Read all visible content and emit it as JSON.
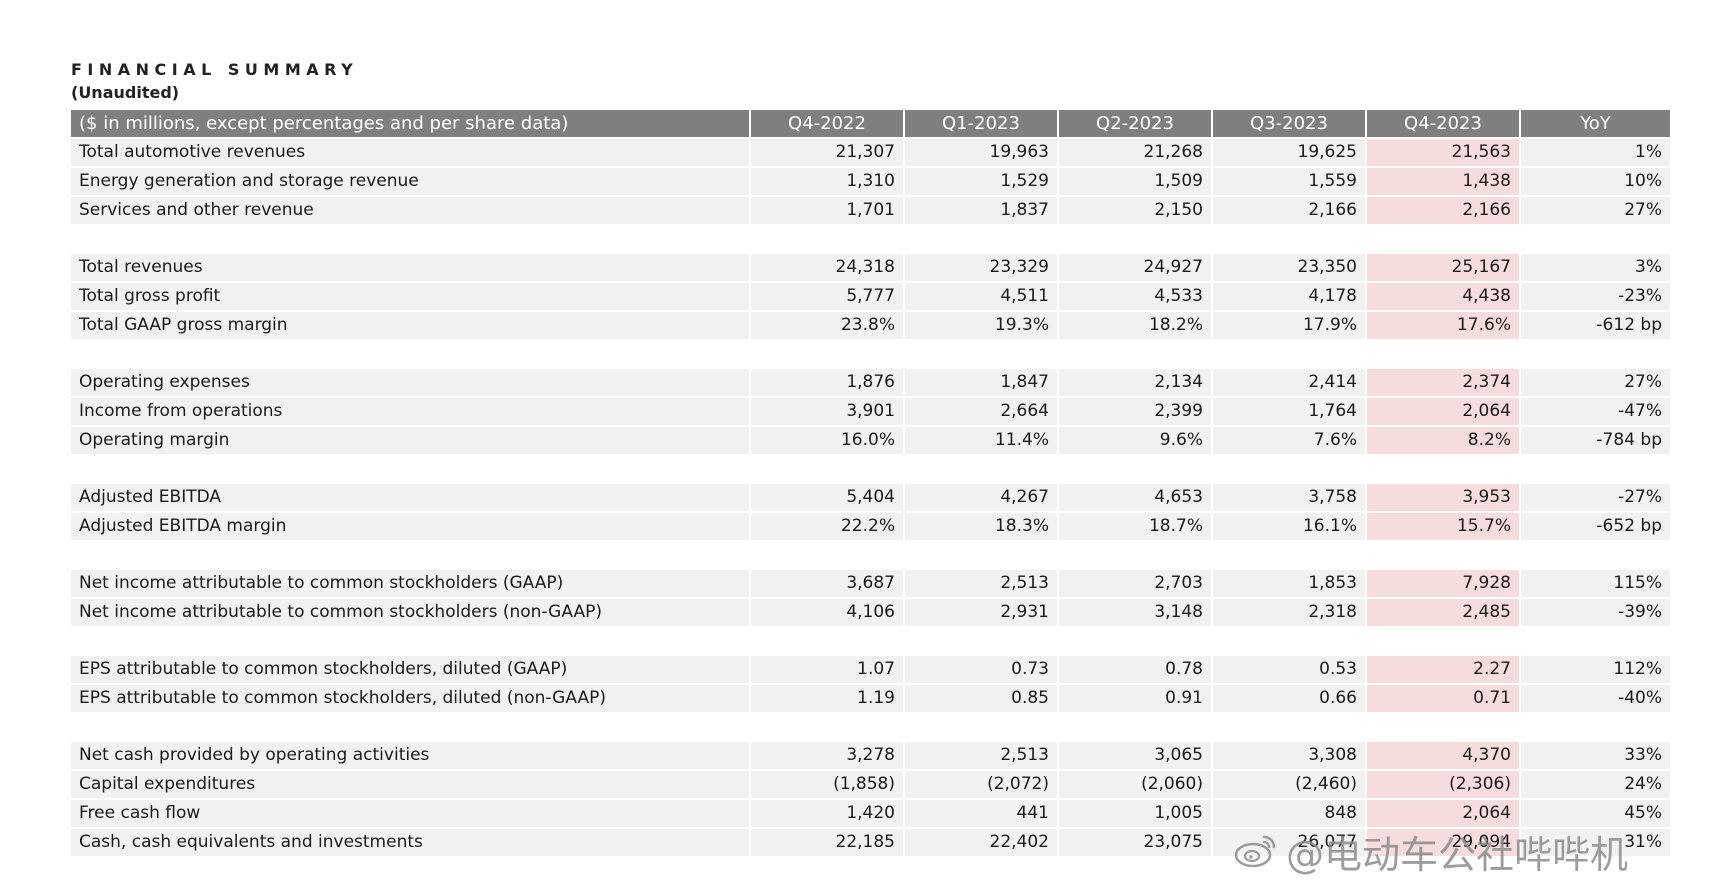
{
  "title": "FINANCIAL SUMMARY",
  "subtitle": "(Unaudited)",
  "header": {
    "label": "($ in millions, except percentages and per share data)",
    "columns": [
      "Q4-2022",
      "Q1-2023",
      "Q2-2023",
      "Q3-2023",
      "Q4-2023",
      "YoY"
    ]
  },
  "colors": {
    "header_bg": "#7f7f7f",
    "row_bg": "#f1f1f1",
    "highlight_bg": "#f6dcdc"
  },
  "groups": [
    {
      "rows": [
        {
          "label": "Total automotive revenues",
          "values": [
            "21,307",
            "19,963",
            "21,268",
            "19,625",
            "21,563",
            "1%"
          ]
        },
        {
          "label": "Energy generation and storage revenue",
          "values": [
            "1,310",
            "1,529",
            "1,509",
            "1,559",
            "1,438",
            "10%"
          ]
        },
        {
          "label": "Services and other revenue",
          "values": [
            "1,701",
            "1,837",
            "2,150",
            "2,166",
            "2,166",
            "27%"
          ]
        }
      ]
    },
    {
      "rows": [
        {
          "label": "Total revenues",
          "values": [
            "24,318",
            "23,329",
            "24,927",
            "23,350",
            "25,167",
            "3%"
          ]
        },
        {
          "label": "Total gross profit",
          "values": [
            "5,777",
            "4,511",
            "4,533",
            "4,178",
            "4,438",
            "-23%"
          ]
        },
        {
          "label": "Total GAAP gross margin",
          "values": [
            "23.8%",
            "19.3%",
            "18.2%",
            "17.9%",
            "17.6%",
            "-612 bp"
          ]
        }
      ]
    },
    {
      "rows": [
        {
          "label": "Operating expenses",
          "values": [
            "1,876",
            "1,847",
            "2,134",
            "2,414",
            "2,374",
            "27%"
          ]
        },
        {
          "label": "Income from operations",
          "values": [
            "3,901",
            "2,664",
            "2,399",
            "1,764",
            "2,064",
            "-47%"
          ]
        },
        {
          "label": "Operating margin",
          "values": [
            "16.0%",
            "11.4%",
            "9.6%",
            "7.6%",
            "8.2%",
            "-784 bp"
          ]
        }
      ]
    },
    {
      "rows": [
        {
          "label": "Adjusted EBITDA",
          "values": [
            "5,404",
            "4,267",
            "4,653",
            "3,758",
            "3,953",
            "-27%"
          ]
        },
        {
          "label": "Adjusted EBITDA margin",
          "values": [
            "22.2%",
            "18.3%",
            "18.7%",
            "16.1%",
            "15.7%",
            "-652 bp"
          ]
        }
      ]
    },
    {
      "rows": [
        {
          "label": "Net income attributable to common stockholders (GAAP)",
          "values": [
            "3,687",
            "2,513",
            "2,703",
            "1,853",
            "7,928",
            "115%"
          ]
        },
        {
          "label": "Net income attributable to common stockholders (non-GAAP)",
          "values": [
            "4,106",
            "2,931",
            "3,148",
            "2,318",
            "2,485",
            "-39%"
          ]
        }
      ]
    },
    {
      "rows": [
        {
          "label": "EPS attributable to common stockholders, diluted (GAAP)",
          "values": [
            "1.07",
            "0.73",
            "0.78",
            "0.53",
            "2.27",
            "112%"
          ]
        },
        {
          "label": "EPS attributable to common stockholders, diluted (non-GAAP)",
          "values": [
            "1.19",
            "0.85",
            "0.91",
            "0.66",
            "0.71",
            "-40%"
          ]
        }
      ]
    },
    {
      "rows": [
        {
          "label": "Net cash provided by operating activities",
          "values": [
            "3,278",
            "2,513",
            "3,065",
            "3,308",
            "4,370",
            "33%"
          ]
        },
        {
          "label": "Capital expenditures",
          "values": [
            "(1,858)",
            "(2,072)",
            "(2,060)",
            "(2,460)",
            "(2,306)",
            "24%"
          ]
        },
        {
          "label": "Free cash flow",
          "values": [
            "1,420",
            "441",
            "1,005",
            "848",
            "2,064",
            "45%"
          ]
        },
        {
          "label": "Cash, cash equivalents and investments",
          "values": [
            "22,185",
            "22,402",
            "23,075",
            "26,077",
            "29,094",
            "31%"
          ]
        }
      ]
    }
  ],
  "watermark": {
    "icon": "weibo-icon",
    "text": "@电动车公社哔哔机"
  }
}
